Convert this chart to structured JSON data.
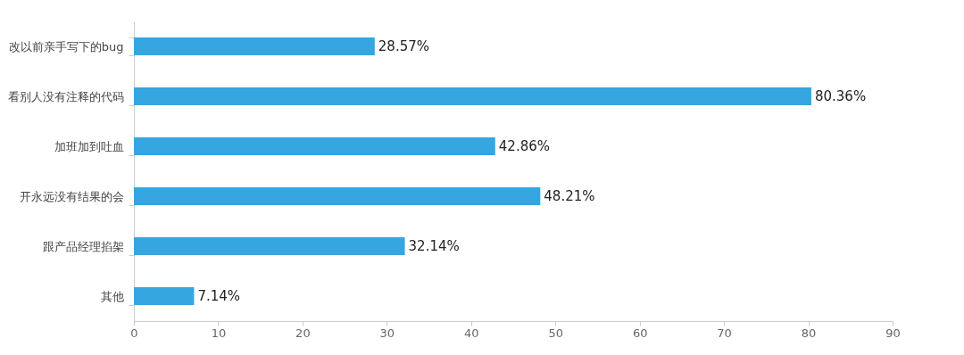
{
  "chart_data": {
    "type": "bar",
    "orientation": "horizontal",
    "categories": [
      "改以前亲手写下的bug",
      "看别人没有注释的代码",
      "加班加到吐血",
      "开永远没有结果的会",
      "跟产品经理掐架",
      "其他"
    ],
    "values": [
      28.57,
      80.36,
      42.86,
      48.21,
      32.14,
      7.14
    ],
    "value_labels": [
      "28.57%",
      "80.36%",
      "42.86%",
      "48.21%",
      "32.14%",
      "7.14%"
    ],
    "color": "#35a6df",
    "xlim": [
      0,
      90
    ],
    "xticks": [
      0,
      10,
      20,
      30,
      40,
      50,
      60,
      70,
      80,
      90
    ],
    "grid": false
  }
}
